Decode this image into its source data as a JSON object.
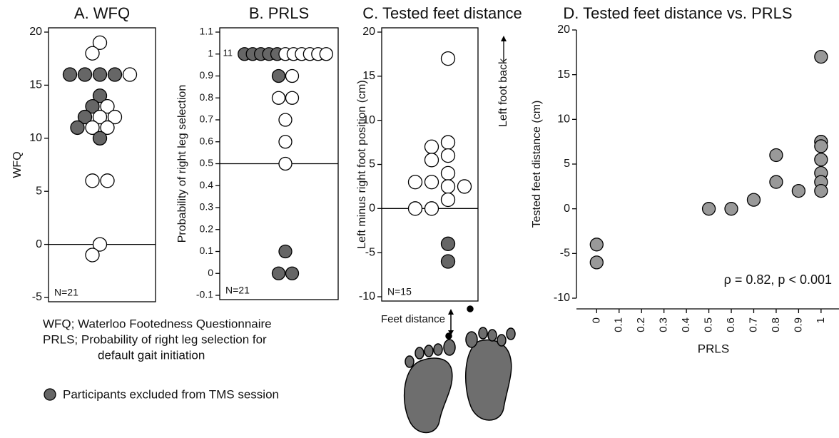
{
  "chart_data": [
    {
      "type": "dot",
      "title": "A. WFQ",
      "ylabel": "WFQ",
      "ylim": [
        -5,
        20
      ],
      "yticks": [
        -5,
        0,
        5,
        10,
        15,
        20
      ],
      "hline": 0,
      "note": "N=21",
      "series": [
        {
          "color": "#666666",
          "values": [
            16,
            16,
            16,
            16,
            14,
            13,
            12,
            11,
            10
          ]
        },
        {
          "color": "#ffffff",
          "values": [
            19,
            18,
            16,
            13,
            12,
            12,
            11,
            11,
            6,
            6,
            0,
            -1
          ]
        }
      ]
    },
    {
      "type": "dot",
      "title": "B. PRLS",
      "ylabel": "Probability of right leg selection",
      "ylim": [
        -0.1,
        1.1
      ],
      "yticks": [
        -0.1,
        0,
        0.1,
        0.2,
        0.3,
        0.4,
        0.5,
        0.6,
        0.7,
        0.8,
        0.9,
        1,
        1.1
      ],
      "hline": 0.5,
      "note": "N=21",
      "annotation": "11",
      "series": [
        {
          "color": "#666666",
          "values": [
            1,
            1,
            1,
            1,
            1,
            0.9,
            0.1,
            0,
            0
          ]
        },
        {
          "color": "#ffffff",
          "values": [
            1,
            1,
            1,
            1,
            1,
            1,
            0.9,
            0.8,
            0.8,
            0.7,
            0.6,
            0.5
          ]
        }
      ]
    },
    {
      "type": "dot",
      "title": "C. Tested feet distance",
      "ylabel": "Left minus right foot position (cm)",
      "ylim": [
        -10,
        20
      ],
      "yticks": [
        -10,
        -5,
        0,
        5,
        10,
        15,
        20
      ],
      "hline": 0,
      "note": "N=15",
      "annotation": "Left foot back",
      "series": [
        {
          "color": "#666666",
          "values": [
            -4,
            -6
          ]
        },
        {
          "color": "#ffffff",
          "values": [
            17,
            7.5,
            7,
            6,
            5.5,
            4,
            3,
            3,
            2.5,
            2.5,
            1,
            0,
            0
          ]
        }
      ]
    },
    {
      "type": "scatter",
      "title": "D. Tested feet distance vs. PRLS",
      "xlabel": "PRLS",
      "ylabel": "Tested feet distance (cm)",
      "annotation": "ρ = 0.82, p < 0.001",
      "color": "#999999",
      "xlim": [
        -0.09,
        1.08
      ],
      "xticks": [
        0,
        0.1,
        0.2,
        0.3,
        0.4,
        0.5,
        0.6,
        0.7,
        0.8,
        0.9,
        1
      ],
      "ylim": [
        -10,
        20
      ],
      "yticks": [
        -10,
        -5,
        0,
        5,
        10,
        15,
        20
      ],
      "x": [
        0,
        0,
        0.5,
        0.6,
        0.7,
        0.8,
        0.8,
        0.9,
        1,
        1,
        1,
        1,
        1,
        1,
        1
      ],
      "y": [
        -4,
        -6,
        0,
        0,
        1,
        6,
        3,
        2,
        17,
        7.5,
        7,
        5.5,
        4,
        3,
        2
      ]
    }
  ],
  "figure_notes": [
    "WFQ; Waterloo Footedness Questionnaire",
    "PRLS; Probability of right leg selection for",
    "default gait initiation"
  ],
  "legend": {
    "label": "Participants excluded from TMS session",
    "color": "#666666"
  },
  "illustration": {
    "label": "Feet distance"
  }
}
